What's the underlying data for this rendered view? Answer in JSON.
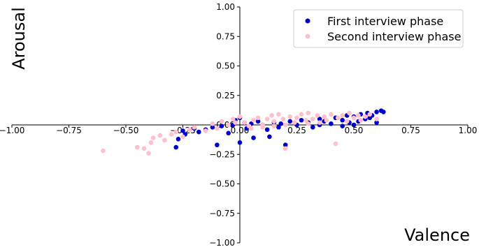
{
  "chart_data": {
    "type": "scatter",
    "x_label": "Valence",
    "y_label": "Arousal",
    "xlim": [
      -1,
      1
    ],
    "ylim": [
      -1,
      1
    ],
    "xticks": [
      {
        "value": -1,
        "label": "−1.00"
      },
      {
        "value": -0.75,
        "label": "−0.75"
      },
      {
        "value": -0.5,
        "label": "−0.50"
      },
      {
        "value": -0.25,
        "label": "−0.25"
      },
      {
        "value": 0,
        "label": "0.00"
      },
      0.25,
      {
        "value": 0.5,
        "label": "0.50"
      },
      0.75,
      {
        "value": 1,
        "label": "1.00"
      }
    ],
    "yticks": [
      {
        "value": -1,
        "label": "−1.00"
      },
      {
        "value": -0.75,
        "label": "−0.75"
      },
      {
        "value": -0.5,
        "label": "−0.50"
      },
      {
        "value": -0.25,
        "label": "−0.25"
      },
      {
        "value": 0,
        "label": "0.00"
      },
      0.25,
      {
        "value": 0.5,
        "label": "0.50"
      },
      0.75,
      {
        "value": 1,
        "label": "1.00"
      }
    ],
    "legend": "upper right",
    "series": [
      {
        "name": "First interview phase",
        "color": "#0000cd",
        "x": [
          -0.28,
          -0.27,
          -0.25,
          -0.24,
          -0.2,
          -0.18,
          -0.15,
          -0.12,
          -0.1,
          -0.08,
          -0.05,
          -0.03,
          -0.02,
          0,
          0,
          0.02,
          0.03,
          0.05,
          0.06,
          0.08,
          0.1,
          0.12,
          0.13,
          0.15,
          0.17,
          0.18,
          0.2,
          0.22,
          0.25,
          0.27,
          0.3,
          0.32,
          0.35,
          0.37,
          0.4,
          0.42,
          0.45,
          0.47,
          0.48,
          0.5,
          0.52,
          0.53,
          0.55,
          0.56,
          0.57,
          0.58,
          0.6,
          0.6,
          0.62,
          0.63,
          0.5,
          0.45,
          0.35
        ],
        "values": [
          -0.19,
          -0.12,
          -0.05,
          -0.08,
          -0.03,
          -0.06,
          -0.04,
          -0.02,
          -0.17,
          -0.01,
          -0.07,
          0,
          0.04,
          -0.15,
          0.06,
          0.02,
          -0.03,
          0.01,
          -0.11,
          0.03,
          0,
          -0.04,
          -0.1,
          0.02,
          -0.02,
          0.01,
          -0.17,
          0.03,
          0,
          0.04,
          0.02,
          -0.02,
          0.05,
          0.03,
          0.01,
          0.06,
          0.04,
          0.08,
          0.02,
          0.07,
          0.03,
          0.09,
          0.05,
          0.1,
          0.06,
          0.08,
          0.11,
          0.02,
          0.12,
          0.11,
          0,
          -0.01,
          0
        ]
      },
      {
        "name": "Second interview phase",
        "color": "#ffc0cb",
        "x": [
          -0.6,
          -0.45,
          -0.42,
          -0.4,
          -0.39,
          -0.38,
          -0.35,
          -0.33,
          -0.3,
          -0.28,
          -0.25,
          -0.22,
          -0.2,
          -0.15,
          -0.12,
          -0.1,
          -0.08,
          -0.05,
          -0.03,
          0,
          0.02,
          0.04,
          0.06,
          0.08,
          0.1,
          0.12,
          0.14,
          0.15,
          0.17,
          0.19,
          0.2,
          0.22,
          0.24,
          0.25,
          0.27,
          0.29,
          0.3,
          0.32,
          0.34,
          0.35,
          0.37,
          0.38,
          0.4,
          0.42,
          0.43,
          0.45,
          0.47,
          0.48,
          0.5,
          0.52,
          0.53,
          0.55,
          0.57,
          0.6,
          0.1,
          0.2,
          0.3,
          0.05,
          -0.02,
          0.15
        ],
        "values": [
          -0.22,
          -0.19,
          -0.2,
          -0.24,
          -0.15,
          -0.11,
          -0.09,
          -0.13,
          -0.08,
          -0.06,
          -0.1,
          -0.04,
          -0.02,
          -0.05,
          0.01,
          -0.03,
          0.03,
          0,
          0.05,
          0.07,
          0.02,
          -0.01,
          0.04,
          0.06,
          0,
          0.05,
          0.08,
          0.03,
          0.09,
          0.05,
          -0.2,
          0.07,
          0.02,
          0.06,
          0.09,
          0.04,
          0.1,
          0.05,
          0.08,
          0.02,
          0.07,
          0.04,
          0.09,
          -0.16,
          0.06,
          0.08,
          0.03,
          0.1,
          0.06,
          0.08,
          0.04,
          0.07,
          0.09,
          0.05,
          -0.02,
          0,
          0.01,
          -0.03,
          0.02,
          -0.01
        ]
      }
    ]
  }
}
